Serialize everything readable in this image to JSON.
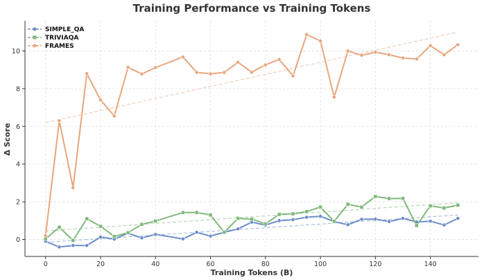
{
  "chart_data": {
    "type": "line",
    "title": "Training Performance vs Training Tokens",
    "xlabel": "Training Tokens (B)",
    "ylabel": "Δ Score",
    "xlim": [
      -7.5,
      157.5
    ],
    "ylim": [
      -0.9,
      11.6
    ],
    "x_ticks": [
      0,
      20,
      40,
      60,
      80,
      100,
      120,
      140
    ],
    "y_ticks": [
      0,
      2,
      4,
      6,
      8,
      10
    ],
    "grid": true,
    "legend_position": "top-left",
    "series": [
      {
        "name": "SIMPLE_QA",
        "color": "#6b8cc8",
        "marker": "circle",
        "x": [
          0,
          5,
          10,
          15,
          20,
          25,
          30,
          35,
          40,
          50,
          55,
          60,
          65,
          70,
          75,
          80,
          85,
          90,
          95,
          100,
          105,
          110,
          115,
          120,
          125,
          130,
          135,
          140,
          145,
          150
        ],
        "values": [
          -0.1,
          -0.4,
          -0.32,
          -0.32,
          0.13,
          0.02,
          0.33,
          0.08,
          0.27,
          0.03,
          0.38,
          0.18,
          0.38,
          0.56,
          0.92,
          0.76,
          1.0,
          1.05,
          1.18,
          1.23,
          0.95,
          0.78,
          1.07,
          1.08,
          0.95,
          1.12,
          0.93,
          0.97,
          0.77,
          1.12
        ],
        "trend": [
          -0.15,
          1.3
        ]
      },
      {
        "name": "TRIVIAQA",
        "color": "#7fb87a",
        "marker": "square",
        "x": [
          0,
          5,
          10,
          15,
          20,
          25,
          30,
          35,
          40,
          50,
          55,
          60,
          65,
          70,
          75,
          80,
          85,
          90,
          95,
          100,
          105,
          110,
          115,
          120,
          125,
          130,
          135,
          140,
          145,
          150
        ],
        "values": [
          0.03,
          0.65,
          -0.05,
          1.1,
          0.7,
          0.16,
          0.36,
          0.8,
          0.98,
          1.43,
          1.43,
          1.3,
          0.38,
          1.12,
          1.08,
          0.83,
          1.33,
          1.36,
          1.48,
          1.72,
          0.96,
          1.87,
          1.72,
          2.28,
          2.17,
          2.18,
          0.74,
          1.78,
          1.67,
          1.82
        ],
        "trend": [
          0.45,
          1.95
        ]
      },
      {
        "name": "FRAMES",
        "color": "#e8a57d",
        "marker": "circle",
        "x": [
          0,
          5,
          10,
          15,
          20,
          25,
          30,
          35,
          40,
          50,
          55,
          60,
          65,
          70,
          75,
          80,
          85,
          90,
          95,
          100,
          105,
          110,
          115,
          120,
          125,
          130,
          135,
          140,
          145,
          150
        ],
        "values": [
          0.2,
          6.3,
          2.75,
          8.8,
          7.4,
          6.55,
          9.13,
          8.78,
          9.12,
          9.68,
          8.86,
          8.79,
          8.86,
          9.4,
          8.87,
          9.26,
          9.55,
          8.68,
          10.87,
          10.53,
          7.55,
          10.0,
          9.77,
          9.93,
          9.8,
          9.63,
          9.57,
          10.28,
          9.8,
          10.33
        ],
        "trend": [
          6.2,
          11.0
        ]
      }
    ]
  }
}
